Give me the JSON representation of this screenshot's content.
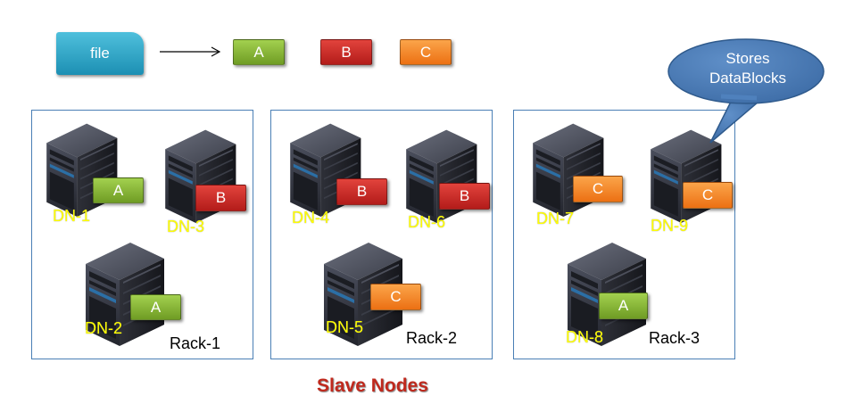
{
  "file_label": "file",
  "blocks": {
    "a": "A",
    "b": "B",
    "c": "C"
  },
  "racks": [
    {
      "label": "Rack-1",
      "nodes": [
        {
          "label": "DN-1",
          "block": "A"
        },
        {
          "label": "DN-3",
          "block": "B"
        },
        {
          "label": "DN-2",
          "block": "A"
        }
      ]
    },
    {
      "label": "Rack-2",
      "nodes": [
        {
          "label": "DN-4",
          "block": "B"
        },
        {
          "label": "DN-6",
          "block": "B"
        },
        {
          "label": "DN-5",
          "block": "C"
        }
      ]
    },
    {
      "label": "Rack-3",
      "nodes": [
        {
          "label": "DN-7",
          "block": "C"
        },
        {
          "label": "DN-9",
          "block": "C"
        },
        {
          "label": "DN-8",
          "block": "A"
        }
      ]
    }
  ],
  "callout": {
    "line1": "Stores",
    "line2": "DataBlocks"
  },
  "footer_title": "Slave Nodes",
  "colors": {
    "file": "#2ba3c8",
    "block_a": "#86b534",
    "block_b": "#d22b26",
    "block_c": "#f88a2d",
    "callout": "#4f81bd",
    "dn_label": "#ffff00",
    "rack_border": "#4a7fb5",
    "title": "#c0291d"
  }
}
